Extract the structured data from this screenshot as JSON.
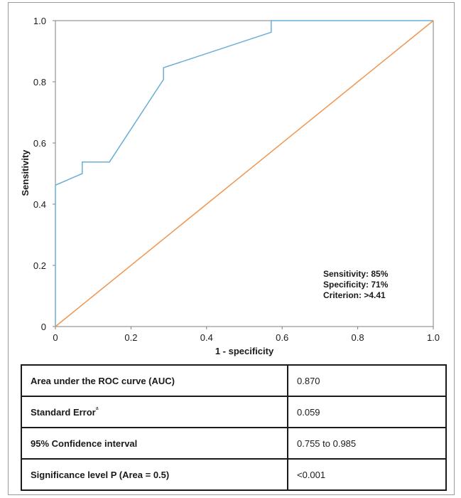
{
  "chart_data": {
    "type": "line",
    "xlabel": "1 - specificity",
    "ylabel": "Sensitivity",
    "xlim": [
      0,
      1
    ],
    "ylim": [
      0,
      1
    ],
    "x_ticks": [
      "0",
      "0.2",
      "0.4",
      "0.6",
      "0.8",
      "1.0"
    ],
    "y_ticks": [
      "0",
      "0.2",
      "0.4",
      "0.6",
      "0.8",
      "1.0"
    ],
    "grid": false,
    "series": [
      {
        "color": "#6aaed6",
        "points": [
          [
            0,
            0
          ],
          [
            0,
            0.462
          ],
          [
            0.071,
            0.5
          ],
          [
            0.071,
            0.538
          ],
          [
            0.143,
            0.538
          ],
          [
            0.286,
            0.808
          ],
          [
            0.286,
            0.846
          ],
          [
            0.571,
            0.962
          ],
          [
            0.571,
            1.0
          ],
          [
            1.0,
            1.0
          ]
        ]
      },
      {
        "color": "#f0954f",
        "points": [
          [
            0,
            0
          ],
          [
            1.0,
            1.0
          ]
        ]
      }
    ],
    "annotation": [
      "Sensitivity: 85%",
      "Specificity: 71%",
      "Criterion:  >4.41"
    ]
  },
  "stats_table": [
    {
      "label": "Area under the ROC curve (AUC)",
      "value": "0.870"
    },
    {
      "label": "Standard Error",
      "sup": "a",
      "value": "0.059"
    },
    {
      "label": "95% Confidence interval",
      "value": "0.755 to 0.985"
    },
    {
      "label": "Significance level P (Area = 0.5)",
      "value": "<0.001"
    }
  ]
}
